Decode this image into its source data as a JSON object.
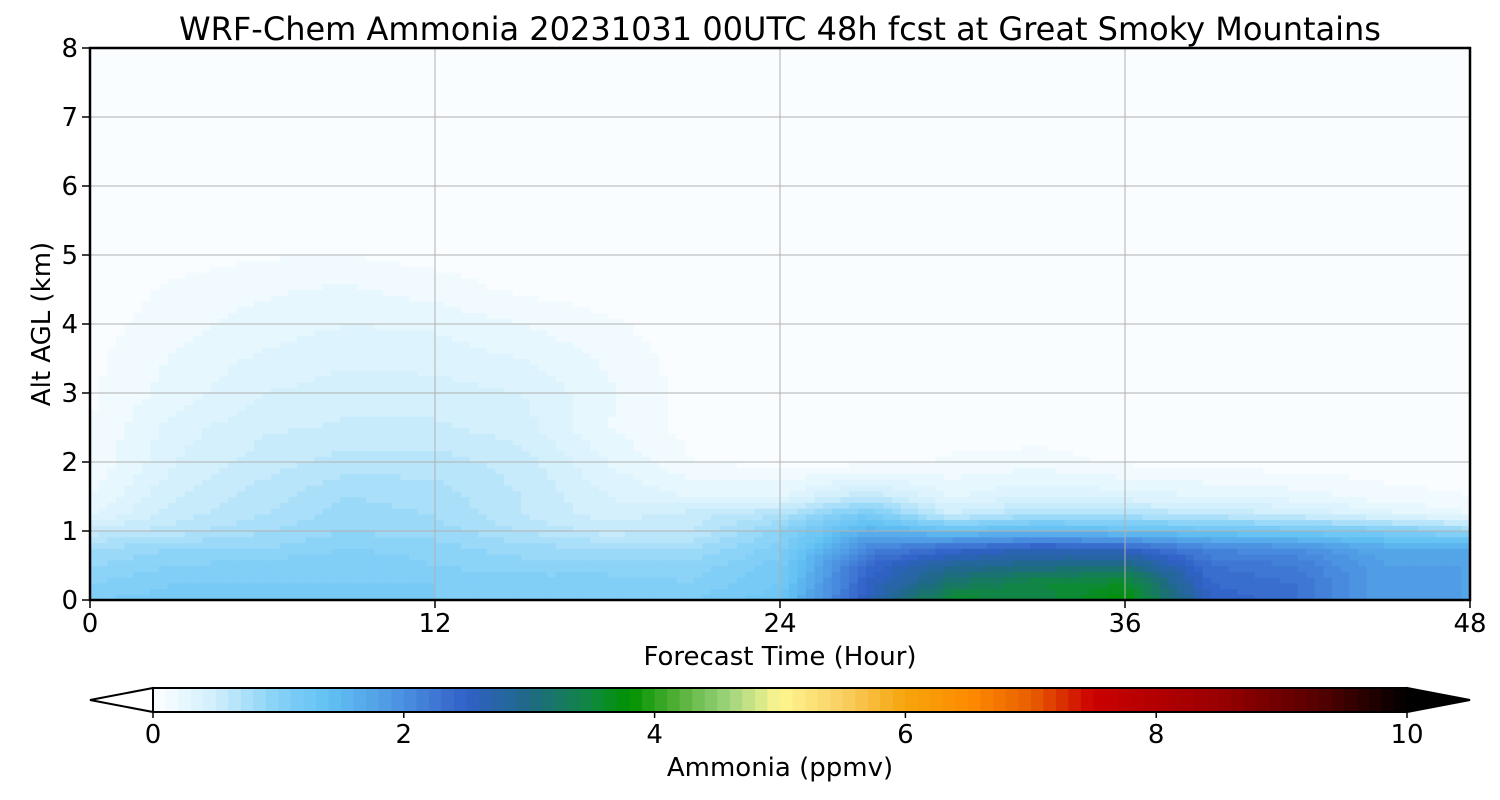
{
  "chart_data": {
    "type": "heatmap",
    "title": "WRF-Chem Ammonia  20231031 00UTC 48h fcst at Great Smoky Mountains",
    "xlabel": "Forecast Time (Hour)",
    "ylabel": "Alt AGL (km)",
    "xlim": [
      0,
      48
    ],
    "ylim": [
      0,
      8
    ],
    "x_ticks": [
      "0",
      "12",
      "24",
      "36",
      "48"
    ],
    "y_ticks": [
      "0",
      "1",
      "2",
      "3",
      "4",
      "5",
      "6",
      "7",
      "8"
    ],
    "grid": true,
    "x_hours": [
      0,
      3,
      6,
      9,
      12,
      15,
      18,
      21,
      24,
      27,
      30,
      33,
      36,
      39,
      42,
      45,
      48
    ],
    "z_km": [
      0,
      0.25,
      0.5,
      0.75,
      1.0,
      1.25,
      1.5,
      2.0,
      2.5,
      3.0,
      3.5,
      4.0,
      4.5,
      5.0,
      8.0
    ],
    "values_ppmv": [
      [
        1.1,
        1.15,
        1.1,
        1.1,
        1.1,
        1.1,
        1.1,
        1.1,
        1.3,
        2.6,
        3.6,
        3.4,
        3.8,
        2.5,
        2.3,
        1.8,
        1.8
      ],
      [
        1.0,
        1.1,
        1.1,
        1.1,
        1.1,
        1.05,
        1.05,
        1.0,
        1.2,
        2.5,
        3.2,
        3.5,
        3.6,
        2.4,
        2.3,
        1.8,
        1.8
      ],
      [
        0.9,
        1.0,
        1.05,
        1.1,
        1.0,
        0.95,
        0.95,
        0.95,
        1.15,
        2.4,
        2.9,
        3.0,
        3.1,
        2.3,
        2.2,
        1.8,
        1.8
      ],
      [
        0.8,
        0.9,
        0.9,
        1.0,
        0.95,
        0.85,
        0.8,
        0.8,
        1.05,
        2.1,
        2.4,
        2.6,
        2.5,
        2.1,
        2.0,
        1.7,
        1.7
      ],
      [
        0.55,
        0.65,
        0.8,
        0.9,
        0.85,
        0.7,
        0.55,
        0.6,
        0.95,
        1.6,
        1.4,
        1.5,
        1.4,
        1.3,
        1.2,
        1.1,
        0.9
      ],
      [
        0.3,
        0.55,
        0.7,
        0.85,
        0.8,
        0.6,
        0.45,
        0.55,
        0.7,
        1.15,
        0.5,
        0.75,
        0.7,
        0.6,
        0.5,
        0.35,
        0.2
      ],
      [
        0.2,
        0.5,
        0.65,
        0.8,
        0.75,
        0.6,
        0.4,
        0.3,
        0.3,
        0.6,
        0.3,
        0.4,
        0.35,
        0.3,
        0.25,
        0.15,
        0.1
      ],
      [
        0.12,
        0.4,
        0.55,
        0.65,
        0.65,
        0.55,
        0.3,
        0.1,
        0.06,
        0.06,
        0.12,
        0.15,
        0.08,
        0.05,
        0.04,
        0.03,
        0.03
      ],
      [
        0.1,
        0.35,
        0.48,
        0.52,
        0.52,
        0.45,
        0.2,
        0.06,
        0.03,
        0.03,
        0.04,
        0.04,
        0.03,
        0.03,
        0.03,
        0.03,
        0.03
      ],
      [
        0.08,
        0.25,
        0.4,
        0.45,
        0.45,
        0.4,
        0.22,
        0.05,
        0.03,
        0.03,
        0.03,
        0.03,
        0.03,
        0.03,
        0.03,
        0.03,
        0.03
      ],
      [
        0.07,
        0.22,
        0.32,
        0.38,
        0.36,
        0.3,
        0.18,
        0.04,
        0.03,
        0.03,
        0.03,
        0.03,
        0.03,
        0.03,
        0.03,
        0.03,
        0.03
      ],
      [
        0.05,
        0.16,
        0.25,
        0.3,
        0.28,
        0.2,
        0.12,
        0.03,
        0.03,
        0.03,
        0.03,
        0.03,
        0.03,
        0.03,
        0.03,
        0.03,
        0.03
      ],
      [
        0.04,
        0.12,
        0.18,
        0.22,
        0.15,
        0.08,
        0.05,
        0.03,
        0.03,
        0.03,
        0.03,
        0.03,
        0.03,
        0.03,
        0.03,
        0.03,
        0.03
      ],
      [
        0.03,
        0.06,
        0.09,
        0.1,
        0.06,
        0.04,
        0.03,
        0.03,
        0.03,
        0.03,
        0.03,
        0.03,
        0.03,
        0.03,
        0.03,
        0.03,
        0.03
      ],
      [
        0.03,
        0.03,
        0.03,
        0.03,
        0.03,
        0.03,
        0.03,
        0.03,
        0.03,
        0.03,
        0.03,
        0.03,
        0.03,
        0.03,
        0.03,
        0.03,
        0.03
      ]
    ],
    "colorbar": {
      "label": "Ammonia  (ppmv)",
      "min": 0,
      "max": 10,
      "ticks": [
        "0",
        "2",
        "4",
        "6",
        "8",
        "10"
      ],
      "extend": "both",
      "colormap": [
        [
          0,
          "#ffffff"
        ],
        [
          0.5,
          "#cfeefc"
        ],
        [
          1.0,
          "#85d0f7"
        ],
        [
          1.4,
          "#62c1f3"
        ],
        [
          2.0,
          "#4a8fe0"
        ],
        [
          2.5,
          "#3160c8"
        ],
        [
          3.0,
          "#1e6a86"
        ],
        [
          3.5,
          "#10883e"
        ],
        [
          3.8,
          "#009200"
        ],
        [
          4.2,
          "#56b23a"
        ],
        [
          4.6,
          "#a0d57e"
        ],
        [
          5.0,
          "#fff690"
        ],
        [
          5.5,
          "#f9cf62"
        ],
        [
          6.0,
          "#f6a40c"
        ],
        [
          6.5,
          "#ff8c00"
        ],
        [
          7.0,
          "#e85f00"
        ],
        [
          7.5,
          "#cc0000"
        ],
        [
          8.5,
          "#990000"
        ],
        [
          9.3,
          "#550000"
        ],
        [
          10,
          "#000000"
        ]
      ],
      "under_color": "#ffffff",
      "over_color": "#000000"
    }
  }
}
